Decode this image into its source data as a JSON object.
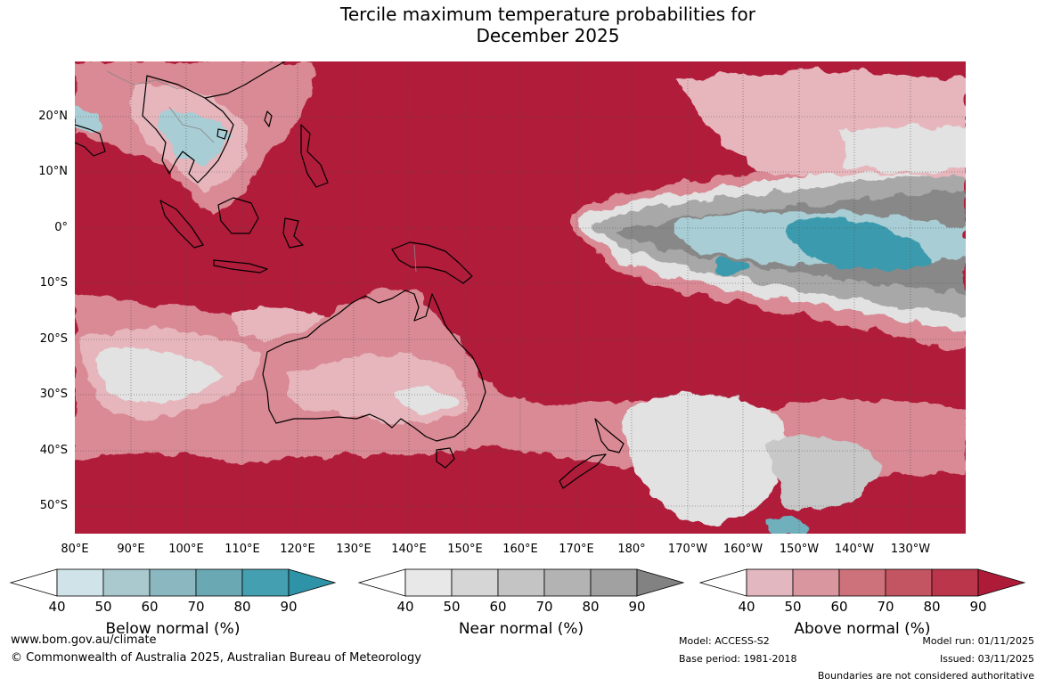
{
  "title": {
    "line1": "Tercile maximum temperature probabilities for",
    "line2": "December 2025"
  },
  "map": {
    "lat_labels": [
      "20°N",
      "10°N",
      "0°",
      "10°S",
      "20°S",
      "30°S",
      "40°S",
      "50°S"
    ],
    "lon_labels": [
      "80°E",
      "90°E",
      "100°E",
      "110°E",
      "120°E",
      "130°E",
      "140°E",
      "150°E",
      "160°E",
      "170°E",
      "180°",
      "170°W",
      "160°W",
      "150°W",
      "140°W",
      "130°W"
    ],
    "colors": {
      "above_90": "#b01c3a",
      "above_80": "#c0354c",
      "above_70": "#cd5b6b",
      "above_60": "#d98a94",
      "above_50": "#e6b6bc",
      "near_50": "#e2e2e2",
      "near_60": "#c8c8c8",
      "near_70": "#a8a8a8",
      "near_90": "#888888",
      "below_50": "#a8cdd4",
      "below_70": "#6fb0bd",
      "below_90": "#3a9aad",
      "coast": "#000000",
      "border": "#888888"
    }
  },
  "colorbars": [
    {
      "name": "below",
      "title": "Below normal (%)",
      "ticks": [
        "40",
        "50",
        "60",
        "70",
        "80",
        "90"
      ],
      "colors": [
        "#ffffff",
        "#cfe3e8",
        "#a9c9cf",
        "#8bb8c0",
        "#6aa8b3",
        "#44a0b1",
        "#2e93a6"
      ]
    },
    {
      "name": "near",
      "title": "Near normal (%)",
      "ticks": [
        "40",
        "50",
        "60",
        "70",
        "80",
        "90"
      ],
      "colors": [
        "#ffffff",
        "#e8e8e8",
        "#d6d6d6",
        "#c4c4c4",
        "#b3b3b3",
        "#a1a1a1",
        "#828282"
      ]
    },
    {
      "name": "above",
      "title": "Above normal (%)",
      "ticks": [
        "40",
        "50",
        "60",
        "70",
        "80",
        "90"
      ],
      "colors": [
        "#ffffff",
        "#e3b7bf",
        "#da969f",
        "#cd717b",
        "#c35563",
        "#bc364b",
        "#ae1b38"
      ]
    }
  ],
  "footer": {
    "url": "www.bom.gov.au/climate",
    "copyright": "© Commonwealth of Australia 2025, Australian Bureau of Meteorology",
    "model": "Model: ACCESS-S2",
    "base_period": "Base period: 1981-2018",
    "model_run": "Model run: 01/11/2025",
    "issued": "Issued: 03/11/2025",
    "disclaimer": "Boundaries are not considered authoritative"
  }
}
